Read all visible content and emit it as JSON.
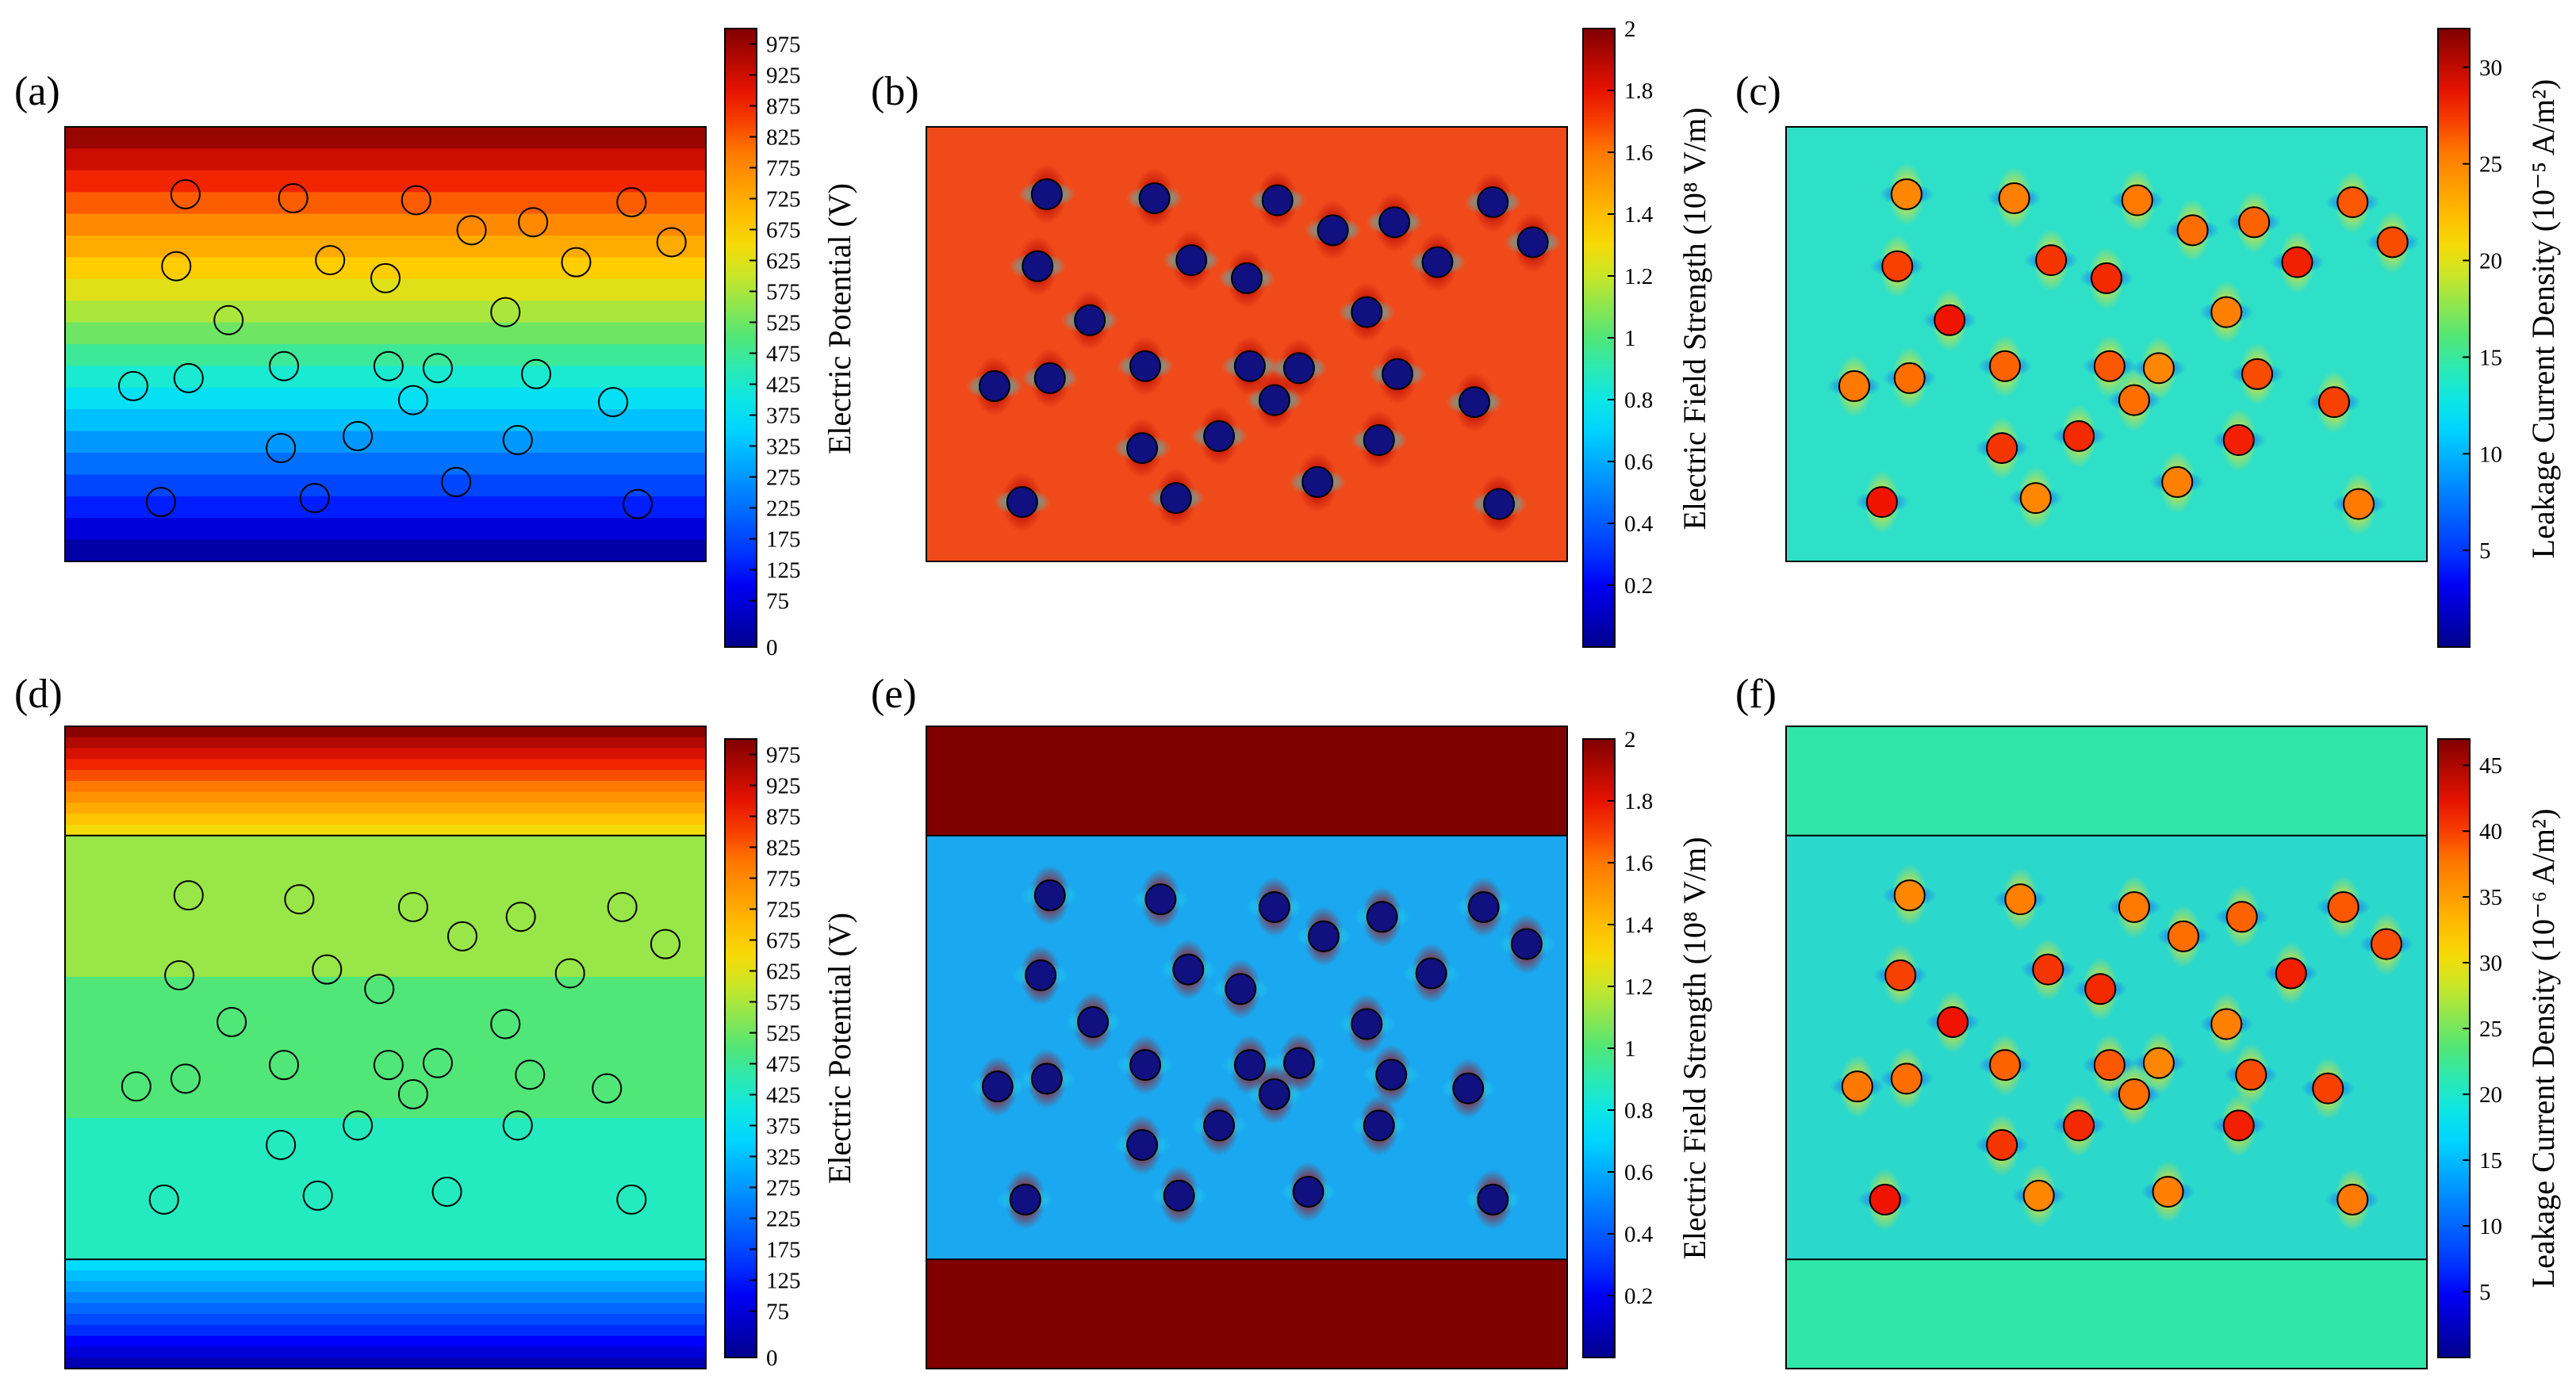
{
  "figure": {
    "panels": [
      {
        "id": "a",
        "label": "(a)",
        "field": "potential",
        "layered": false,
        "colorbar": {
          "title": "Electric Potential (V)",
          "min": 0,
          "max": 1000,
          "ticks": [
            "0",
            "75",
            "125",
            "175",
            "225",
            "275",
            "325",
            "375",
            "425",
            "475",
            "525",
            "575",
            "625",
            "675",
            "725",
            "775",
            "825",
            "875",
            "925",
            "975"
          ],
          "tick_values": [
            0,
            75,
            125,
            175,
            225,
            275,
            325,
            375,
            425,
            475,
            525,
            575,
            625,
            675,
            725,
            775,
            825,
            875,
            925,
            975
          ]
        }
      },
      {
        "id": "b",
        "label": "(b)",
        "field": "efield",
        "layered": false,
        "colorbar": {
          "title": "Electric Field Strength (10⁸ V/m)",
          "min": 0,
          "max": 2,
          "ticks": [
            "0.2",
            "0.4",
            "0.6",
            "0.8",
            "1",
            "1.2",
            "1.4",
            "1.6",
            "1.8",
            "2"
          ],
          "tick_values": [
            0.2,
            0.4,
            0.6,
            0.8,
            1,
            1.2,
            1.4,
            1.6,
            1.8,
            2
          ]
        }
      },
      {
        "id": "c",
        "label": "(c)",
        "field": "leakage",
        "layered": false,
        "colorbar": {
          "title": "Leakage Current Density  (10⁻⁵ A/m²)",
          "min": 0,
          "max": 32,
          "ticks": [
            "5",
            "10",
            "15",
            "20",
            "25",
            "30"
          ],
          "tick_values": [
            5,
            10,
            15,
            20,
            25,
            30
          ]
        }
      },
      {
        "id": "d",
        "label": "(d)",
        "field": "potential",
        "layered": true,
        "colorbar": {
          "title": "Electric Potential (V)",
          "min": 0,
          "max": 1000,
          "ticks": [
            "0",
            "75",
            "125",
            "175",
            "225",
            "275",
            "325",
            "375",
            "425",
            "475",
            "525",
            "575",
            "625",
            "675",
            "725",
            "775",
            "825",
            "875",
            "925",
            "975"
          ],
          "tick_values": [
            0,
            75,
            125,
            175,
            225,
            275,
            325,
            375,
            425,
            475,
            525,
            575,
            625,
            675,
            725,
            775,
            825,
            875,
            925,
            975
          ]
        }
      },
      {
        "id": "e",
        "label": "(e)",
        "field": "efield",
        "layered": true,
        "colorbar": {
          "title": "Electric Field Strength (10⁸ V/m)",
          "min": 0,
          "max": 2,
          "ticks": [
            "0.2",
            "0.4",
            "0.6",
            "0.8",
            "1",
            "1.2",
            "1.4",
            "1.6",
            "1.8",
            "2"
          ],
          "tick_values": [
            0.2,
            0.4,
            0.6,
            0.8,
            1,
            1.2,
            1.4,
            1.6,
            1.8,
            2
          ]
        }
      },
      {
        "id": "f",
        "label": "(f)",
        "field": "leakage",
        "layered": true,
        "colorbar": {
          "title": "Leakage Current Density  (10⁻⁶ A/m²)",
          "min": 0,
          "max": 47,
          "ticks": [
            "5",
            "10",
            "15",
            "20",
            "25",
            "30",
            "35",
            "40",
            "45"
          ],
          "tick_values": [
            5,
            10,
            15,
            20,
            25,
            30,
            35,
            40,
            45
          ]
        }
      }
    ]
  }
}
